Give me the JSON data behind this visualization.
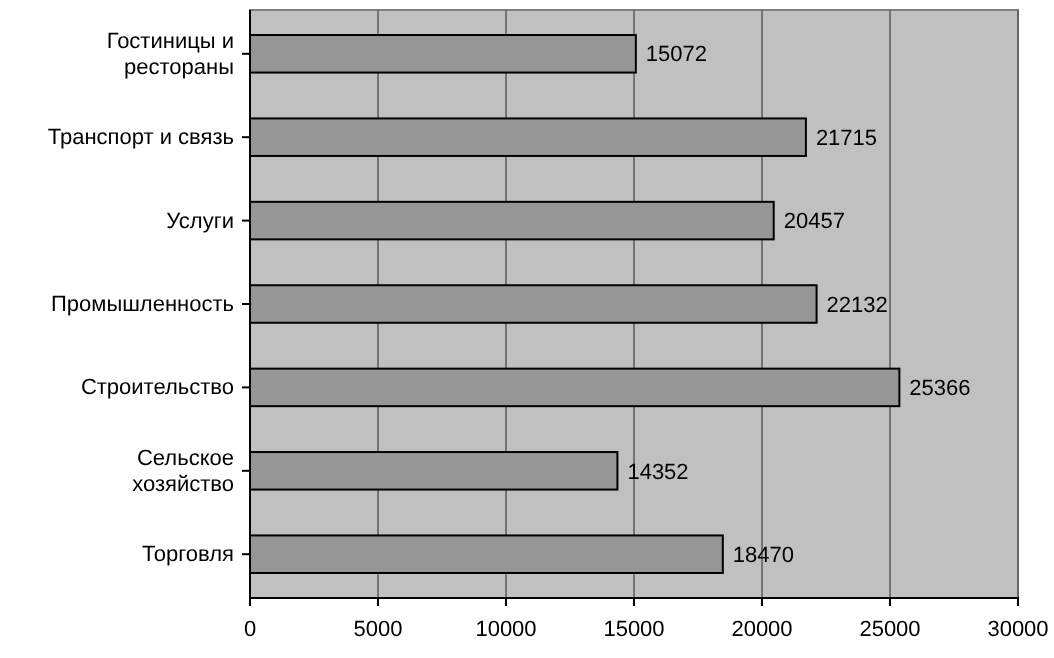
{
  "chart_data": {
    "type": "bar",
    "orientation": "horizontal",
    "categories": [
      "Гостиницы и рестораны",
      "Транспорт и связь",
      "Услуги",
      "Промышленность",
      "Строительство",
      "Сельское хозяйство",
      "Торговля"
    ],
    "values": [
      15072,
      21715,
      20457,
      22132,
      25366,
      14352,
      18470
    ],
    "color": "#969696",
    "data_labels": true,
    "grid": "x",
    "xlim": [
      0,
      30000
    ],
    "xticks": [
      0,
      5000,
      10000,
      15000,
      20000,
      25000,
      30000
    ]
  }
}
